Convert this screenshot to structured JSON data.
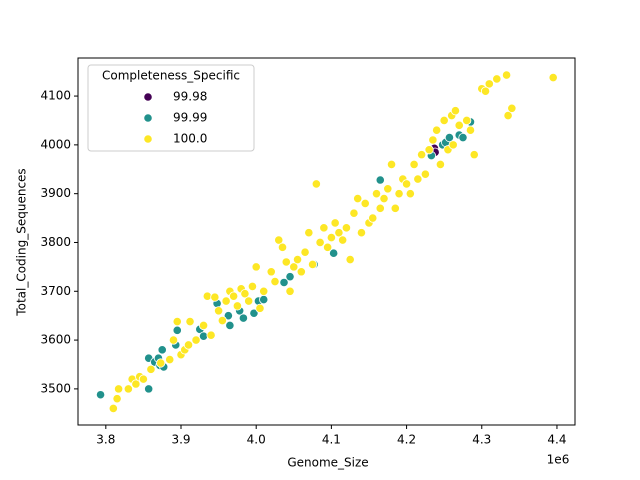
{
  "chart_data": {
    "type": "scatter",
    "x_label": "Genome_Size",
    "y_label": "Total_Coding_Sequences",
    "x_scale_label": "1e6",
    "legend_title": "Completeness_Specific",
    "legend_position": "upper left",
    "xlim": [
      3.763,
      4.424
    ],
    "ylim": [
      3426,
      4178
    ],
    "xticks": [
      3.8,
      3.9,
      {
        "value": 4.0,
        "label": "4.0"
      },
      4.1,
      4.2,
      4.3,
      4.4
    ],
    "yticks": [
      3500,
      3600,
      3700,
      3800,
      3900,
      4000,
      4100
    ],
    "series": [
      {
        "name": "99.98",
        "color": "#440154",
        "x": [
          4.237,
          4.238
        ],
        "y": [
          3993,
          3985
        ]
      },
      {
        "name": "99.99",
        "color": "#21918c",
        "x": [
          3.793,
          3.857,
          3.857,
          3.865,
          3.87,
          3.872,
          3.875,
          3.877,
          3.893,
          3.895,
          3.925,
          3.93,
          3.948,
          3.963,
          3.965,
          3.978,
          3.983,
          3.997,
          4.003,
          4.01,
          4.037,
          4.045,
          4.077,
          4.103,
          4.165,
          4.233,
          4.248,
          4.252,
          4.257,
          4.27,
          4.275,
          4.285
        ],
        "y": [
          3488,
          3500,
          3563,
          3555,
          3563,
          3548,
          3580,
          3545,
          3590,
          3620,
          3622,
          3608,
          3675,
          3650,
          3630,
          3660,
          3645,
          3655,
          3680,
          3683,
          3718,
          3730,
          3755,
          3778,
          3928,
          3978,
          4000,
          4005,
          4015,
          4020,
          4015,
          4047
        ]
      },
      {
        "name": "100.0",
        "color": "#fde725",
        "x": [
          3.81,
          3.815,
          3.817,
          3.83,
          3.835,
          3.84,
          3.845,
          3.85,
          3.86,
          3.873,
          3.885,
          3.89,
          3.895,
          3.9,
          3.905,
          3.91,
          3.912,
          3.92,
          3.93,
          3.935,
          3.94,
          3.945,
          3.95,
          3.955,
          3.96,
          3.965,
          3.97,
          3.975,
          3.98,
          3.985,
          3.99,
          3.995,
          4.0,
          4.005,
          4.01,
          4.02,
          4.025,
          4.03,
          4.035,
          4.04,
          4.045,
          4.05,
          4.055,
          4.06,
          4.065,
          4.07,
          4.075,
          4.08,
          4.085,
          4.09,
          4.095,
          4.1,
          4.105,
          4.11,
          4.115,
          4.12,
          4.125,
          4.13,
          4.135,
          4.14,
          4.145,
          4.15,
          4.155,
          4.16,
          4.165,
          4.17,
          4.175,
          4.18,
          4.185,
          4.19,
          4.195,
          4.2,
          4.205,
          4.21,
          4.215,
          4.22,
          4.225,
          4.23,
          4.235,
          4.24,
          4.245,
          4.25,
          4.255,
          4.26,
          4.262,
          4.265,
          4.27,
          4.28,
          4.285,
          4.29,
          4.3,
          4.305,
          4.31,
          4.32,
          4.333,
          4.335,
          4.34,
          4.395
        ],
        "y": [
          3460,
          3480,
          3500,
          3500,
          3520,
          3510,
          3525,
          3520,
          3540,
          3553,
          3560,
          3600,
          3638,
          3570,
          3580,
          3590,
          3638,
          3600,
          3630,
          3690,
          3610,
          3688,
          3660,
          3640,
          3680,
          3700,
          3690,
          3670,
          3705,
          3695,
          3680,
          3710,
          3750,
          3665,
          3700,
          3740,
          3720,
          3805,
          3790,
          3760,
          3700,
          3750,
          3765,
          3740,
          3780,
          3820,
          3755,
          3920,
          3800,
          3830,
          3790,
          3810,
          3840,
          3820,
          3805,
          3830,
          3765,
          3860,
          3890,
          3820,
          3880,
          3840,
          3850,
          3900,
          3870,
          3890,
          3910,
          3960,
          3870,
          3900,
          3930,
          3920,
          3900,
          3960,
          3930,
          3980,
          3940,
          3990,
          4010,
          4030,
          3960,
          4050,
          3990,
          4060,
          4000,
          4070,
          4040,
          4050,
          4030,
          3980,
          4115,
          4110,
          4125,
          4135,
          4143,
          4060,
          4075,
          4138
        ]
      }
    ]
  }
}
